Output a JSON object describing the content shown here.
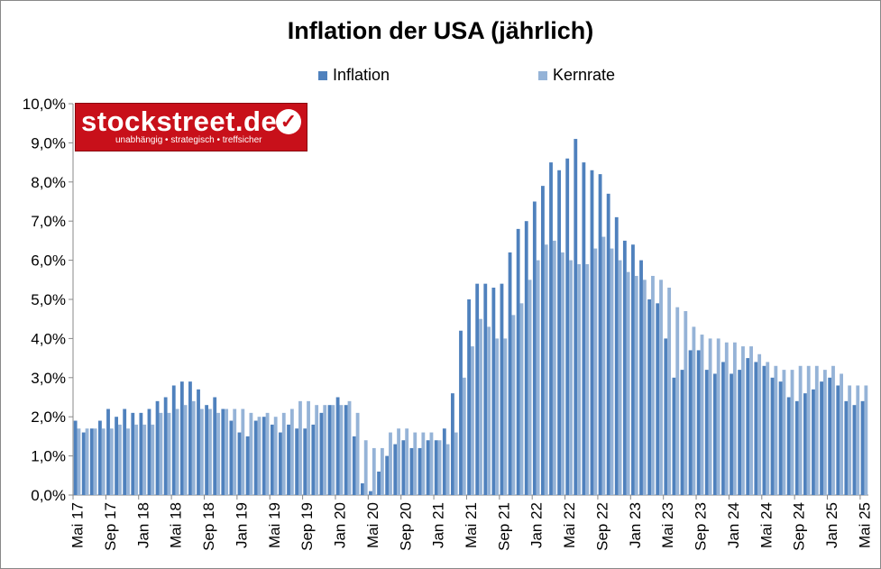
{
  "chart_data": {
    "type": "bar",
    "title": "Inflation der USA (jährlich)",
    "legend_position": "top",
    "grid": false,
    "ylim": [
      0,
      10
    ],
    "y_ticks": [
      "0,0%",
      "1,0%",
      "2,0%",
      "3,0%",
      "4,0%",
      "5,0%",
      "6,0%",
      "7,0%",
      "8,0%",
      "9,0%",
      "10,0%"
    ],
    "x_tick_labels": [
      "Mai 17",
      "Sep 17",
      "Jan 18",
      "Mai 18",
      "Sep 18",
      "Jan 19",
      "Mai 19",
      "Sep 19",
      "Jan 20",
      "Mai 20",
      "Sep 20",
      "Jan 21",
      "Mai 21",
      "Sep 21",
      "Jan 22",
      "Mai 22",
      "Sep 22",
      "Jan 23",
      "Mai 23",
      "Sep 23",
      "Jan 24",
      "Mai 24",
      "Sep 24",
      "Jan 25",
      "Mai 25"
    ],
    "x_tick_every": 4,
    "series": [
      {
        "name": "Inflation",
        "color": "#4f81bd",
        "values": [
          1.9,
          1.6,
          1.7,
          1.9,
          2.2,
          2.0,
          2.2,
          2.1,
          2.1,
          2.2,
          2.4,
          2.5,
          2.8,
          2.9,
          2.9,
          2.7,
          2.3,
          2.5,
          2.2,
          1.9,
          1.6,
          1.5,
          1.9,
          2.0,
          1.8,
          1.6,
          1.8,
          1.7,
          1.7,
          1.8,
          2.1,
          2.3,
          2.5,
          2.3,
          1.5,
          0.3,
          0.1,
          0.6,
          1.0,
          1.3,
          1.4,
          1.2,
          1.2,
          1.4,
          1.4,
          1.7,
          2.6,
          4.2,
          5.0,
          5.4,
          5.4,
          5.3,
          5.4,
          6.2,
          6.8,
          7.0,
          7.5,
          7.9,
          8.5,
          8.3,
          8.6,
          9.1,
          8.5,
          8.3,
          8.2,
          7.7,
          7.1,
          6.5,
          6.4,
          6.0,
          5.0,
          4.9,
          4.0,
          3.0,
          3.2,
          3.7,
          3.7,
          3.2,
          3.1,
          3.4,
          3.1,
          3.2,
          3.5,
          3.4,
          3.3,
          3.0,
          2.9,
          2.5,
          2.4,
          2.6,
          2.7,
          2.9,
          3.0,
          2.8,
          2.4,
          2.3,
          2.4
        ]
      },
      {
        "name": "Kernrate",
        "color": "#95b3d7",
        "values": [
          1.7,
          1.7,
          1.7,
          1.7,
          1.7,
          1.8,
          1.7,
          1.8,
          1.8,
          1.8,
          2.1,
          2.1,
          2.2,
          2.3,
          2.4,
          2.2,
          2.2,
          2.1,
          2.2,
          2.2,
          2.2,
          2.1,
          2.0,
          2.1,
          2.0,
          2.1,
          2.2,
          2.4,
          2.4,
          2.3,
          2.3,
          2.3,
          2.3,
          2.4,
          2.1,
          1.4,
          1.2,
          1.2,
          1.6,
          1.7,
          1.7,
          1.6,
          1.6,
          1.6,
          1.4,
          1.3,
          1.6,
          3.0,
          3.8,
          4.5,
          4.3,
          4.0,
          4.0,
          4.6,
          4.9,
          5.5,
          6.0,
          6.4,
          6.5,
          6.2,
          6.0,
          5.9,
          5.9,
          6.3,
          6.6,
          6.3,
          6.0,
          5.7,
          5.6,
          5.5,
          5.6,
          5.5,
          5.3,
          4.8,
          4.7,
          4.3,
          4.1,
          4.0,
          4.0,
          3.9,
          3.9,
          3.8,
          3.8,
          3.6,
          3.4,
          3.3,
          3.2,
          3.2,
          3.3,
          3.3,
          3.3,
          3.2,
          3.3,
          3.1,
          2.8,
          2.8,
          2.8
        ]
      }
    ]
  },
  "logo": {
    "name": "stockstreet.de",
    "tagline": "unabhängig • strategisch • treffsicher"
  }
}
